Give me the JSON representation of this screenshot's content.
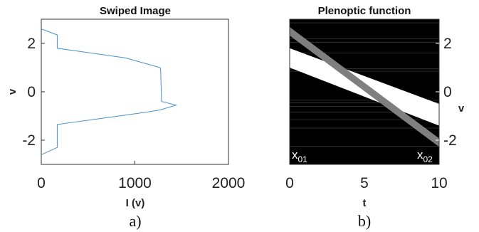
{
  "chart_data": [
    {
      "type": "line",
      "title": "Swiped Image",
      "xlabel": "I (v)",
      "ylabel": "v",
      "xlim": [
        0,
        2000
      ],
      "ylim": [
        -3,
        3
      ],
      "xticks": [
        "0",
        "1000",
        "2000"
      ],
      "yticks": [
        "-2",
        "0",
        "2"
      ],
      "caption": "a)",
      "grid": false,
      "color": "#4a90c8",
      "series": [
        {
          "x": [
            0,
            170,
            170,
            900,
            1270,
            1275,
            1285,
            1440,
            1270,
            1110,
            170,
            170,
            0
          ],
          "y": [
            2.6,
            2.35,
            1.8,
            1.4,
            1.0,
            0.9,
            -0.4,
            -0.55,
            -0.75,
            -0.85,
            -1.35,
            -2.3,
            -2.6
          ]
        }
      ]
    },
    {
      "type": "heatmap",
      "title": "Plenoptic function",
      "xlabel": "t",
      "ylabel": "v",
      "xlim": [
        0,
        10
      ],
      "ylim": [
        -3,
        3
      ],
      "xticks": [
        "0",
        "5",
        "10"
      ],
      "yticks": [
        "-2",
        "0",
        "2"
      ],
      "caption": "b)",
      "background_color": "#000000",
      "white_band": {
        "v_top_at_t0": 1.8,
        "v_top_at_t10": -0.5,
        "v_bottom_at_t0": 1.0,
        "v_bottom_at_t10": -1.4
      },
      "gray_band": {
        "v_center_at_t0": 2.5,
        "v_center_at_t10": -2.1,
        "width": 0.35,
        "color": "#7f7f7f"
      },
      "faint_lines_v": [
        2.85,
        2.2,
        2.05,
        1.6,
        0.95,
        0.85,
        -0.35,
        -0.45,
        -0.6,
        -0.85,
        -1.15,
        -1.5,
        -2.25
      ],
      "corner_labels": {
        "left": "x",
        "left_sub": "01",
        "right": "x",
        "right_sub": "02"
      }
    }
  ]
}
